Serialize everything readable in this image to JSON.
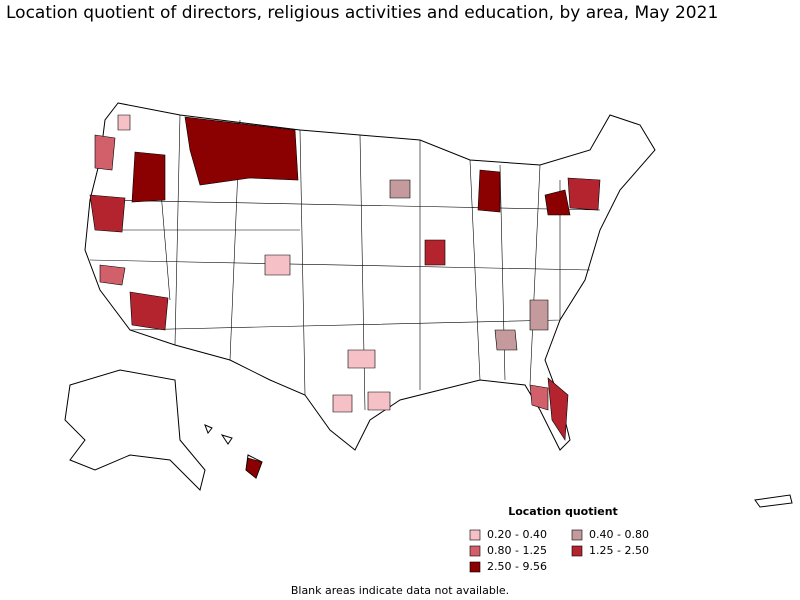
{
  "header": {
    "title": "Location quotient of directors, religious activities and education, by area, May 2021"
  },
  "legend": {
    "title": "Location quotient",
    "entries": [
      {
        "label": "0.20 - 0.40",
        "color": "#f6c1c6"
      },
      {
        "label": "0.40 - 0.80",
        "color": "#c49a9c"
      },
      {
        "label": "0.80 - 1.25",
        "color": "#d2606a"
      },
      {
        "label": "1.25 - 2.50",
        "color": "#b3242f"
      },
      {
        "label": "2.50 - 9.56",
        "color": "#8b0000"
      }
    ]
  },
  "footnote": "Blank areas indicate data not available."
}
